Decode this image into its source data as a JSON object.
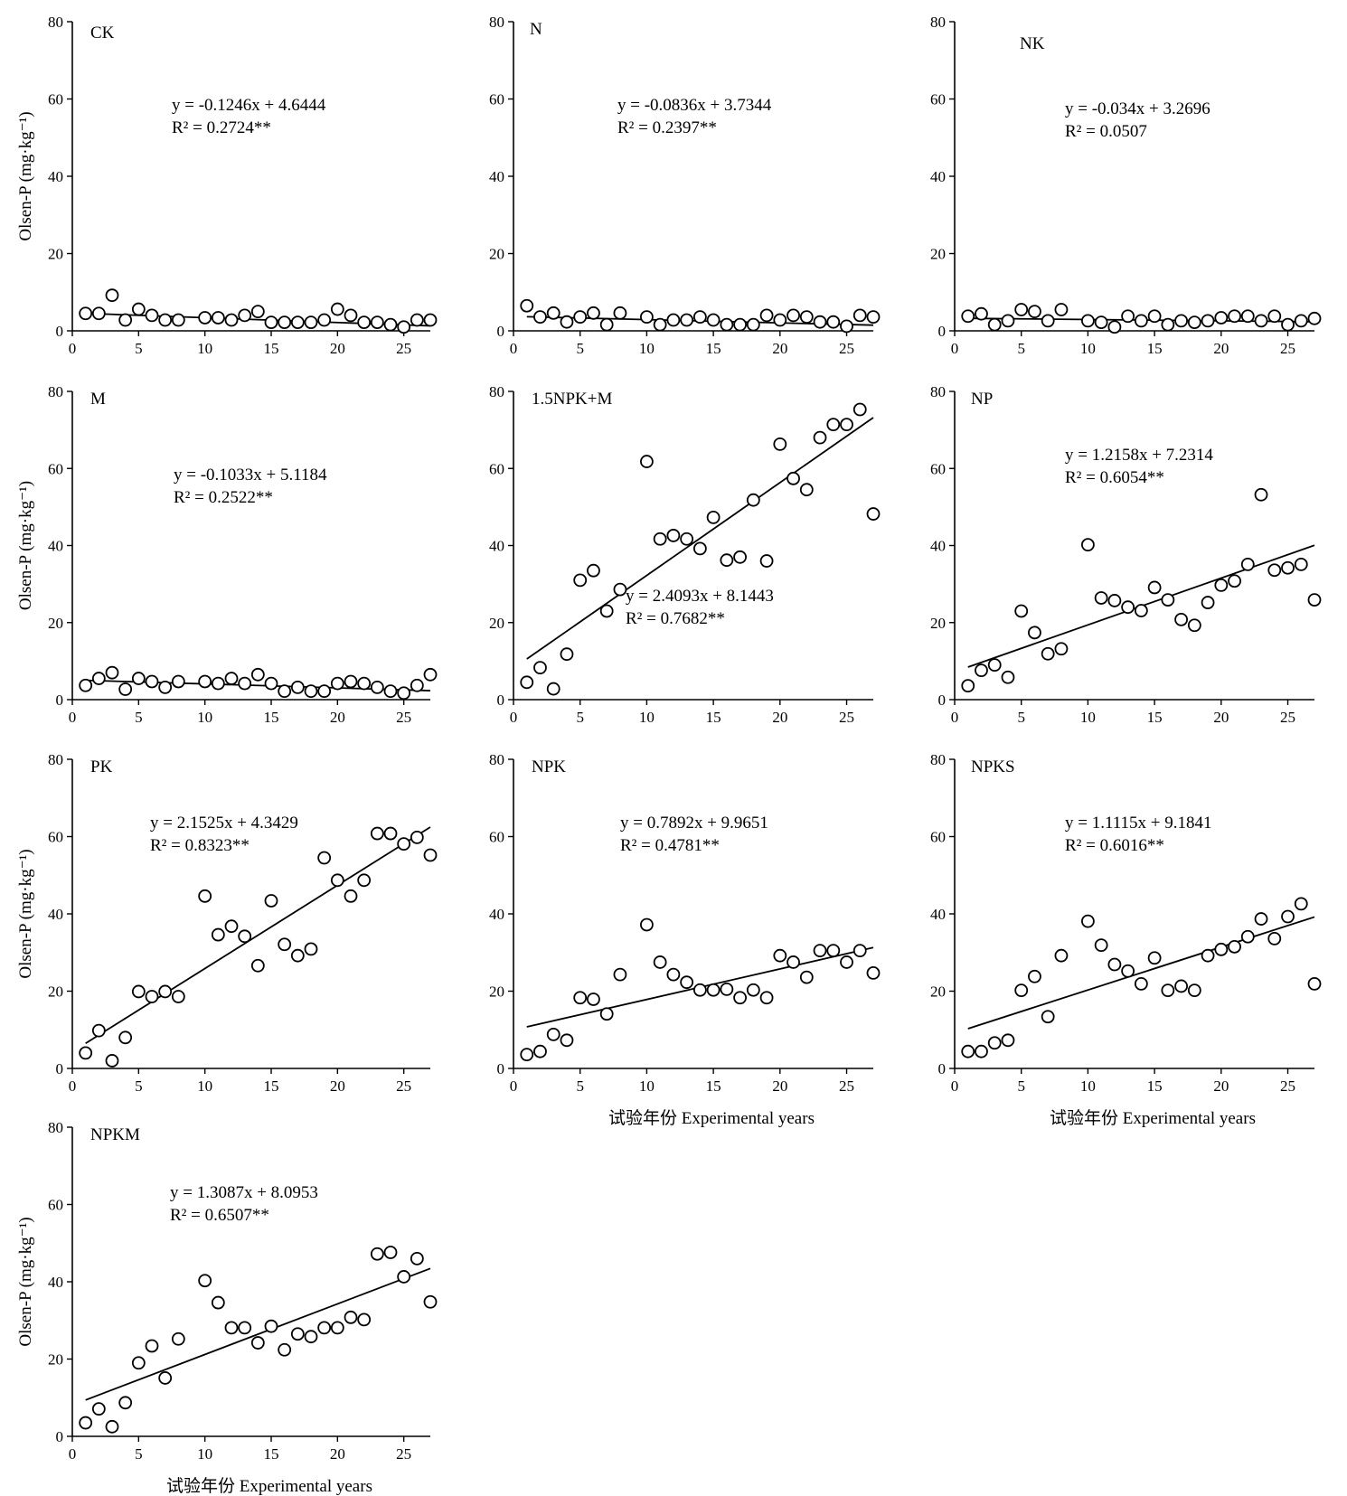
{
  "figure": {
    "y_axis_label": "Olsen-P (mg·kg⁻¹)",
    "x_axis_label": "试验年份 Experimental years"
  },
  "chart_data": [
    {
      "type": "scatter",
      "panel": "CK",
      "eq_line1": "y = -0.1246x + 4.6444",
      "eq_line2": "R² = 0.2724**",
      "fit": {
        "slope": -0.1246,
        "intercept": 4.6444
      },
      "xlim": [
        0,
        27
      ],
      "ylim": [
        0,
        80
      ],
      "xticks": [
        0,
        5,
        10,
        15,
        20,
        25
      ],
      "yticks": [
        0,
        20,
        40,
        60,
        80
      ],
      "x": [
        1,
        2,
        3,
        4,
        5,
        6,
        7,
        8,
        10,
        11,
        12,
        13,
        14,
        15,
        16,
        17,
        18,
        19,
        20,
        21,
        22,
        23,
        24,
        25,
        26,
        27
      ],
      "y": [
        4.5,
        4.5,
        9.2,
        2.8,
        5.6,
        4.0,
        2.8,
        2.8,
        3.4,
        3.4,
        2.8,
        4.0,
        5.0,
        2.2,
        2.2,
        2.2,
        2.2,
        2.8,
        5.6,
        4.0,
        2.2,
        2.2,
        1.6,
        1.0,
        2.8,
        2.8
      ]
    },
    {
      "type": "scatter",
      "panel": "N",
      "eq_line1": "y = -0.0836x + 3.7344",
      "eq_line2": "R² = 0.2397**",
      "fit": {
        "slope": -0.0836,
        "intercept": 3.7344
      },
      "xlim": [
        0,
        27
      ],
      "ylim": [
        0,
        80
      ],
      "xticks": [
        0,
        5,
        10,
        15,
        20,
        25
      ],
      "yticks": [
        0,
        20,
        40,
        60,
        80
      ],
      "x": [
        1,
        2,
        3,
        4,
        5,
        6,
        7,
        8,
        10,
        11,
        12,
        13,
        14,
        15,
        16,
        17,
        18,
        19,
        20,
        21,
        22,
        23,
        24,
        25,
        26,
        27
      ],
      "y": [
        6.5,
        3.6,
        4.6,
        2.3,
        3.6,
        4.6,
        1.6,
        4.6,
        3.6,
        1.6,
        2.8,
        2.8,
        3.6,
        2.8,
        1.6,
        1.6,
        1.6,
        4.0,
        2.8,
        4.0,
        3.6,
        2.3,
        2.3,
        1.2,
        4.0,
        3.6
      ]
    },
    {
      "type": "scatter",
      "panel": "NK",
      "eq_line1": "y = -0.034x + 3.2696",
      "eq_line2": "R² = 0.0507",
      "fit": {
        "slope": -0.034,
        "intercept": 3.2696
      },
      "xlim": [
        0,
        27
      ],
      "ylim": [
        0,
        80
      ],
      "xticks": [
        0,
        5,
        10,
        15,
        20,
        25
      ],
      "yticks": [
        0,
        20,
        40,
        60,
        80
      ],
      "x": [
        1,
        2,
        3,
        4,
        5,
        6,
        7,
        8,
        10,
        11,
        12,
        13,
        14,
        15,
        16,
        17,
        18,
        19,
        20,
        21,
        22,
        23,
        24,
        25,
        26,
        27
      ],
      "y": [
        3.8,
        4.4,
        1.6,
        2.6,
        5.5,
        5.0,
        2.6,
        5.5,
        2.6,
        2.2,
        1.0,
        3.8,
        2.6,
        3.8,
        1.6,
        2.6,
        2.2,
        2.6,
        3.4,
        3.8,
        3.8,
        2.6,
        3.8,
        1.6,
        2.6,
        3.2
      ]
    },
    {
      "type": "scatter",
      "panel": "M",
      "eq_line1": "y = -0.1033x + 5.1184",
      "eq_line2": "R² = 0.2522**",
      "fit": {
        "slope": -0.1033,
        "intercept": 5.1184
      },
      "xlim": [
        0,
        27
      ],
      "ylim": [
        0,
        80
      ],
      "xticks": [
        0,
        5,
        10,
        15,
        20,
        25
      ],
      "yticks": [
        0,
        20,
        40,
        60,
        80
      ],
      "x": [
        1,
        2,
        3,
        4,
        5,
        6,
        7,
        8,
        10,
        11,
        12,
        13,
        14,
        15,
        16,
        17,
        18,
        19,
        20,
        21,
        22,
        23,
        24,
        25,
        26,
        27
      ],
      "y": [
        3.7,
        5.5,
        7.0,
        2.7,
        5.5,
        4.7,
        3.2,
        4.7,
        4.7,
        4.2,
        5.5,
        4.2,
        6.5,
        4.2,
        2.2,
        3.2,
        2.2,
        2.2,
        4.2,
        4.7,
        4.2,
        3.2,
        2.2,
        1.7,
        3.7,
        6.5
      ]
    },
    {
      "type": "scatter",
      "panel": "1.5NPK+M",
      "eq_line1": "y = 2.4093x + 8.1443",
      "eq_line2": "R² = 0.7682**",
      "fit": {
        "slope": 2.4093,
        "intercept": 8.1443
      },
      "xlim": [
        0,
        27
      ],
      "ylim": [
        0,
        80
      ],
      "xticks": [
        0,
        5,
        10,
        15,
        20,
        25
      ],
      "yticks": [
        0,
        20,
        40,
        60,
        80
      ],
      "x": [
        1,
        2,
        3,
        4,
        5,
        6,
        7,
        8,
        10,
        11,
        12,
        13,
        14,
        15,
        16,
        17,
        18,
        19,
        20,
        21,
        22,
        23,
        24,
        25,
        26,
        27
      ],
      "y": [
        4.5,
        8.3,
        2.8,
        11.8,
        31.0,
        33.5,
        23.0,
        28.6,
        61.8,
        41.7,
        42.6,
        41.7,
        39.2,
        47.3,
        36.2,
        37.0,
        51.8,
        36.0,
        66.3,
        57.4,
        54.5,
        68.0,
        71.4,
        71.4,
        75.3,
        48.2
      ]
    },
    {
      "type": "scatter",
      "panel": "NP",
      "eq_line1": "y = 1.2158x + 7.2314",
      "eq_line2": "R² = 0.6054**",
      "fit": {
        "slope": 1.2158,
        "intercept": 7.2314
      },
      "xlim": [
        0,
        27
      ],
      "ylim": [
        0,
        80
      ],
      "xticks": [
        0,
        5,
        10,
        15,
        20,
        25
      ],
      "yticks": [
        0,
        20,
        40,
        60,
        80
      ],
      "x": [
        1,
        2,
        3,
        4,
        5,
        6,
        7,
        8,
        10,
        11,
        12,
        13,
        14,
        15,
        16,
        17,
        18,
        19,
        20,
        21,
        22,
        23,
        24,
        25,
        26,
        27
      ],
      "y": [
        3.6,
        7.6,
        9.0,
        5.8,
        23.0,
        17.4,
        11.9,
        13.2,
        40.2,
        26.4,
        25.7,
        24.0,
        23.1,
        29.1,
        25.9,
        20.8,
        19.3,
        25.2,
        29.7,
        30.8,
        35.1,
        53.2,
        33.6,
        34.2,
        35.1,
        25.9
      ]
    },
    {
      "type": "scatter",
      "panel": "PK",
      "eq_line1": "y = 2.1525x + 4.3429",
      "eq_line2": "R² = 0.8323**",
      "fit": {
        "slope": 2.1525,
        "intercept": 4.3429
      },
      "xlim": [
        0,
        27
      ],
      "ylim": [
        0,
        80
      ],
      "xticks": [
        0,
        5,
        10,
        15,
        20,
        25
      ],
      "yticks": [
        0,
        20,
        40,
        60,
        80
      ],
      "x": [
        1,
        2,
        3,
        4,
        5,
        6,
        7,
        8,
        10,
        11,
        12,
        13,
        14,
        15,
        16,
        17,
        18,
        19,
        20,
        21,
        22,
        23,
        24,
        25,
        26,
        27
      ],
      "y": [
        4.0,
        9.8,
        2.0,
        8.0,
        19.9,
        18.6,
        19.9,
        18.6,
        44.6,
        34.6,
        36.8,
        34.2,
        26.6,
        43.4,
        32.1,
        29.2,
        30.9,
        54.5,
        48.7,
        44.6,
        48.7,
        60.8,
        60.8,
        58.1,
        59.8,
        55.2
      ]
    },
    {
      "type": "scatter",
      "panel": "NPK",
      "eq_line1": "y = 0.7892x + 9.9651",
      "eq_line2": "R² = 0.4781**",
      "fit": {
        "slope": 0.7892,
        "intercept": 9.9651
      },
      "xlim": [
        0,
        27
      ],
      "ylim": [
        0,
        80
      ],
      "xticks": [
        0,
        5,
        10,
        15,
        20,
        25
      ],
      "yticks": [
        0,
        20,
        40,
        60,
        80
      ],
      "x": [
        1,
        2,
        3,
        4,
        5,
        6,
        7,
        8,
        10,
        11,
        12,
        13,
        14,
        15,
        16,
        17,
        18,
        19,
        20,
        21,
        22,
        23,
        24,
        25,
        26,
        27
      ],
      "y": [
        3.6,
        4.4,
        8.8,
        7.3,
        18.3,
        17.9,
        14.1,
        24.3,
        37.2,
        27.5,
        24.3,
        22.3,
        20.3,
        20.3,
        20.5,
        18.3,
        20.3,
        18.3,
        29.2,
        27.5,
        23.6,
        30.5,
        30.5,
        27.5,
        30.5,
        24.7
      ]
    },
    {
      "type": "scatter",
      "panel": "NPKS",
      "eq_line1": "y = 1.1115x + 9.1841",
      "eq_line2": "R² = 0.6016**",
      "fit": {
        "slope": 1.1115,
        "intercept": 9.1841
      },
      "xlim": [
        0,
        27
      ],
      "ylim": [
        0,
        80
      ],
      "xticks": [
        0,
        5,
        10,
        15,
        20,
        25
      ],
      "yticks": [
        0,
        20,
        40,
        60,
        80
      ],
      "x": [
        1,
        2,
        3,
        4,
        5,
        6,
        7,
        8,
        10,
        11,
        12,
        13,
        14,
        15,
        16,
        17,
        18,
        19,
        20,
        21,
        22,
        23,
        24,
        25,
        26,
        27
      ],
      "y": [
        4.4,
        4.4,
        6.6,
        7.3,
        20.2,
        23.8,
        13.4,
        29.2,
        38.1,
        31.9,
        26.9,
        25.2,
        21.9,
        28.6,
        20.2,
        21.3,
        20.2,
        29.2,
        30.8,
        31.5,
        34.1,
        38.7,
        33.6,
        39.3,
        42.6,
        21.9
      ]
    },
    {
      "type": "scatter",
      "panel": "NPKM",
      "eq_line1": "y = 1.3087x + 8.0953",
      "eq_line2": "R² = 0.6507**",
      "fit": {
        "slope": 1.3087,
        "intercept": 8.0953
      },
      "xlim": [
        0,
        27
      ],
      "ylim": [
        0,
        80
      ],
      "xticks": [
        0,
        5,
        10,
        15,
        20,
        25
      ],
      "yticks": [
        0,
        20,
        40,
        60,
        80
      ],
      "x": [
        1,
        2,
        3,
        4,
        5,
        6,
        7,
        8,
        10,
        11,
        12,
        13,
        14,
        15,
        16,
        17,
        18,
        19,
        20,
        21,
        22,
        23,
        24,
        25,
        26,
        27
      ],
      "y": [
        3.5,
        7.1,
        2.5,
        8.7,
        19.0,
        23.4,
        15.1,
        25.2,
        40.3,
        34.6,
        28.1,
        28.1,
        24.2,
        28.5,
        22.4,
        26.5,
        25.8,
        28.1,
        28.1,
        30.8,
        30.2,
        47.2,
        47.6,
        41.3,
        46.0,
        34.8
      ]
    }
  ]
}
